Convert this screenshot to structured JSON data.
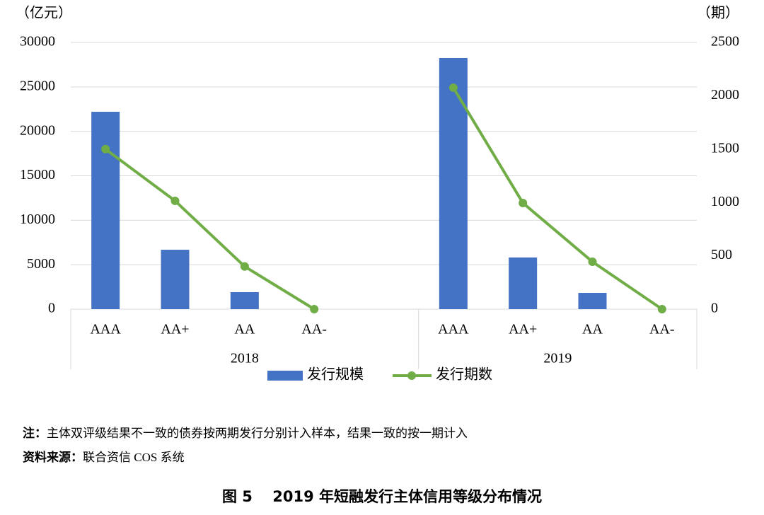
{
  "chart_data": {
    "type": "bar_line",
    "y_unit": "（亿元）",
    "y2_unit": "（期）",
    "groups": [
      {
        "name": "2018",
        "categories": [
          "AAA",
          "AA+",
          "AA",
          "AA-",
          null
        ]
      },
      {
        "name": "2019",
        "categories": [
          "AAA",
          "AA+",
          "AA",
          "AA-"
        ]
      }
    ],
    "series": [
      {
        "name": "发行规模",
        "type": "bar",
        "color": "#4472c4",
        "values": [
          22200,
          6680,
          1910,
          0,
          null,
          28250,
          5810,
          1830,
          0
        ]
      },
      {
        "name": "发行期数",
        "type": "line",
        "axis": "y2",
        "color": "#70ad47",
        "values": [
          1500,
          1015,
          400,
          0,
          null,
          2076,
          995,
          444,
          0
        ]
      }
    ],
    "ylim": [
      0,
      30000
    ],
    "yticks": [
      0,
      5000,
      10000,
      15000,
      20000,
      25000,
      30000
    ],
    "y2lim": [
      0,
      2500
    ],
    "y2ticks": [
      0,
      500,
      1000,
      1500,
      2000,
      2500
    ],
    "grid": true,
    "legend": "bottom"
  },
  "notes": [
    {
      "label": "注：",
      "text": "主体双评级结果不一致的债券按两期发行分别计入样本，结果一致的按一期计入"
    },
    {
      "label": "资料来源：",
      "text": "联合资信 COS 系统"
    }
  ],
  "caption": "图 5　 2019 年短融发行主体信用等级分布情况"
}
